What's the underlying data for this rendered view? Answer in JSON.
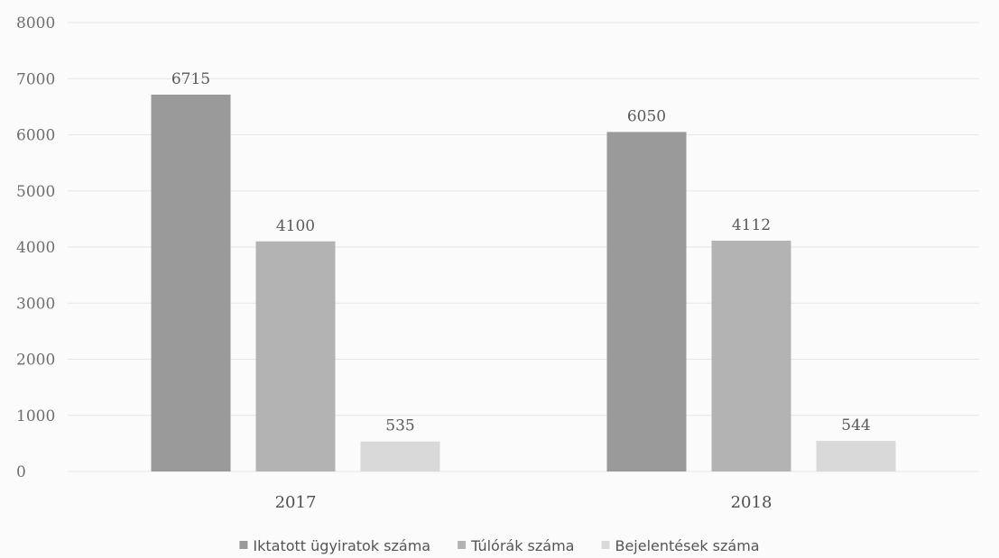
{
  "chart_data": {
    "type": "bar",
    "title": "",
    "xlabel": "",
    "ylabel": "",
    "categories": [
      "2017",
      "2018"
    ],
    "ylim": [
      0,
      8000
    ],
    "yticks": [
      0,
      1000,
      2000,
      3000,
      4000,
      5000,
      6000,
      7000,
      8000
    ],
    "yticks_text": [
      "0",
      "1000",
      "2000",
      "3000",
      "4000",
      "5000",
      "6000",
      "7000",
      "8000"
    ],
    "grid": true,
    "legend_position": "bottom",
    "series": [
      {
        "name": "Iktatott ügyiratok száma",
        "values": [
          6715,
          6050
        ],
        "labels": [
          "6715",
          "6050"
        ],
        "color": "#9a9a9a"
      },
      {
        "name": "Túlórák száma",
        "values": [
          4100,
          4112
        ],
        "labels": [
          "4100",
          "4112"
        ],
        "color": "#b3b3b3"
      },
      {
        "name": "Bejelentések száma",
        "values": [
          535,
          544
        ],
        "labels": [
          "535",
          "544"
        ],
        "color": "#d9d9d9"
      }
    ]
  }
}
